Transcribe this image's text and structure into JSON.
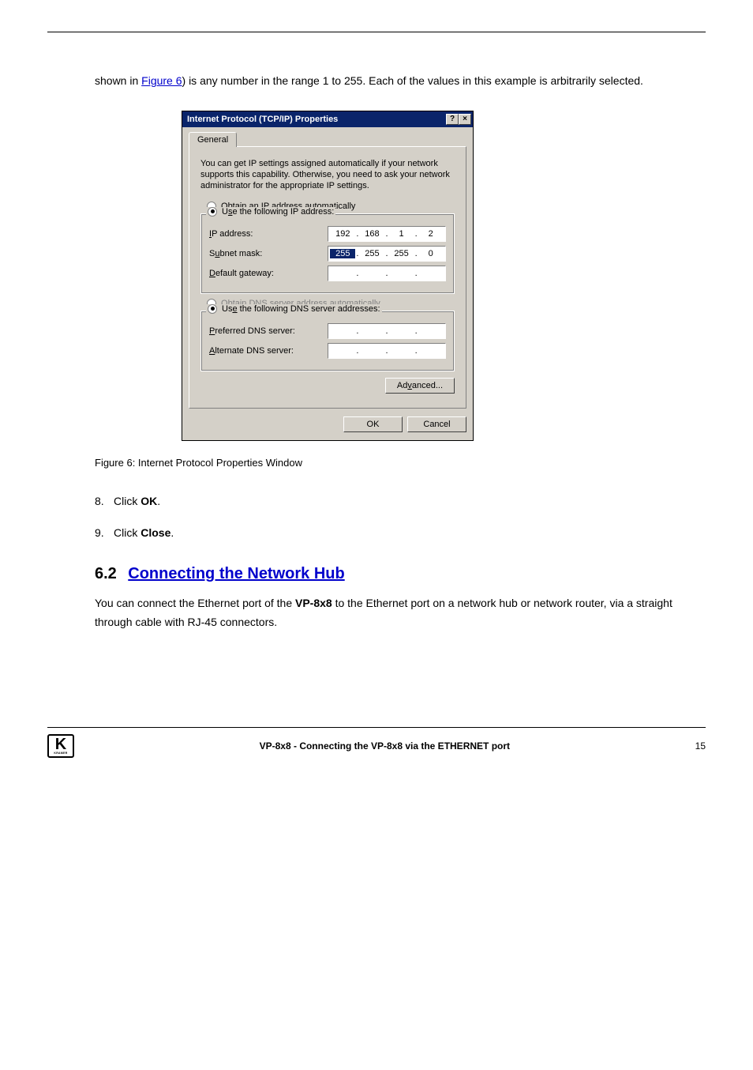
{
  "page": {
    "intro_prefix": "shown in ",
    "intro_link": "Figure 6",
    "intro_suffix": ") is any number in the range 1 to 255. Each of the values in this example is arbitrarily selected.",
    "figure_caption": "Figure 6: Internet Protocol Properties Window",
    "step8_num": "8.",
    "step8_text_a": "Click ",
    "step8_text_b": "OK",
    "step8_text_c": ".",
    "step9_num": "9.",
    "step9_text_a": "Click ",
    "step9_text_b": "Close",
    "step9_text_c": "."
  },
  "dialog": {
    "title": "Internet Protocol (TCP/IP) Properties",
    "tab_general": "General",
    "info": "You can get IP settings assigned automatically if your network supports this capability. Otherwise, you need to ask your network administrator for the appropriate IP settings.",
    "radio_obtain_ip": "Obtain an IP address automatically",
    "radio_use_ip": "Use the following IP address:",
    "label_ip": "IP address:",
    "ip": [
      "192",
      "168",
      "1",
      "2"
    ],
    "label_subnet": "Subnet mask:",
    "subnet": [
      "255",
      "255",
      "255",
      "0"
    ],
    "label_gateway": "Default gateway:",
    "radio_obtain_dns": "Obtain DNS server address automatically",
    "radio_use_dns": "Use the following DNS server addresses:",
    "label_pref_dns": "Preferred DNS server:",
    "label_alt_dns": "Alternate DNS server:",
    "btn_advanced": "Advanced...",
    "btn_ok": "OK",
    "btn_cancel": "Cancel",
    "btn_help": "?",
    "btn_close": "×"
  },
  "section": {
    "num": "6.2",
    "title": "Connecting the Network Hub",
    "body_a": "You can connect the Ethernet port of the ",
    "body_b": "VP-8x8",
    "body_c": " to the Ethernet port on a network hub or network router, via a straight through cable with RJ-45 connectors."
  },
  "footer": {
    "product": "VP-8x8 - Connecting the VP-8x8 via the ETHERNET port",
    "page_num": "15",
    "logo_main": "K",
    "logo_sub": "KRAMER"
  },
  "colors": {
    "titlebar": "#0a246a",
    "dialog_bg": "#d4d0c8",
    "link": "#0000cc",
    "disabled": "#808080"
  }
}
